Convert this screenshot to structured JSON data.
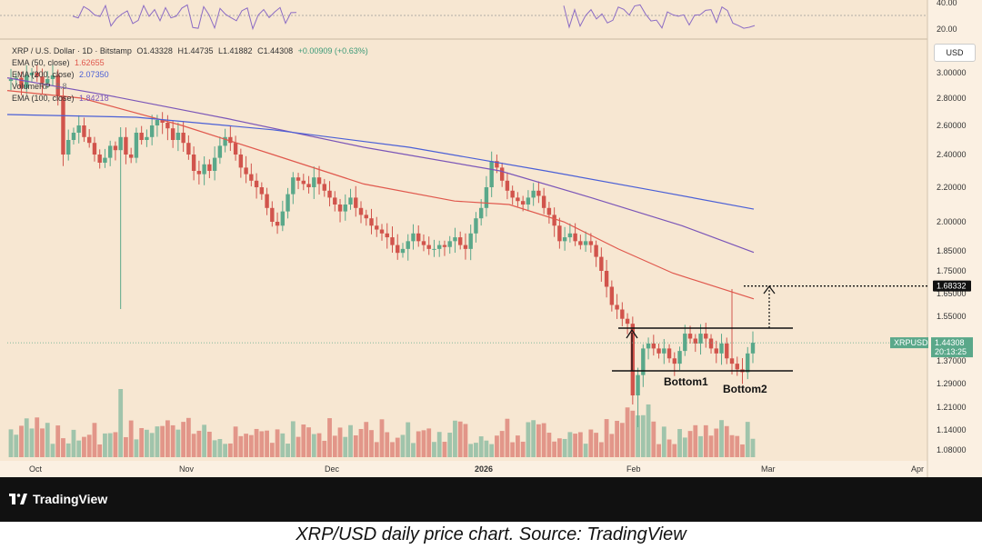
{
  "header": {
    "symbol_line": "XRP / U.S. Dollar · 1D · Bitstamp",
    "ohlc": {
      "o": "O1.43328",
      "h": "H1.44735",
      "l": "L1.41882",
      "c": "C1.44308",
      "chg": "+0.00909 (+0.63%)"
    },
    "indicators": [
      {
        "label": "EMA (50, close)",
        "value": "1.62655",
        "color": "#e0584d"
      },
      {
        "label": "EMA (200, close)",
        "value": "2.07350",
        "color": "#4a5fd6"
      },
      {
        "label": "VolumeRP",
        "value": "2.8",
        "color": "#9a9a9a"
      },
      {
        "label": "EMA (100, close)",
        "value": "1.84218",
        "color": "#7b56b8"
      }
    ]
  },
  "axis": {
    "currency_button": "USD",
    "price_ticks": [
      "3.00000",
      "2.80000",
      "2.60000",
      "2.40000",
      "2.20000",
      "2.00000",
      "1.85000",
      "1.75000",
      "1.65000",
      "1.55000",
      "1.37000",
      "1.29000",
      "1.21000",
      "1.14000",
      "1.08000"
    ],
    "rsi_ticks": [
      "40.00",
      "20.00"
    ],
    "time_labels": [
      "Oct",
      "Nov",
      "Dec",
      "2026",
      "Feb",
      "Mar",
      "Apr"
    ],
    "target_label": "1.68332",
    "current_symbol": "XRPUSD",
    "current_price": "1.44308",
    "countdown": "20:13:25"
  },
  "annotations": {
    "bottom1": "Bottom1",
    "bottom2": "Bottom2"
  },
  "branding": {
    "logo": "TradingView"
  },
  "caption": "XRP/USD daily price chart. Source: TradingView",
  "colors": {
    "bg": "#f7e7d2",
    "up": "#5aa88a",
    "down": "#d1544c",
    "ema50": "#e0584d",
    "ema100": "#7b56b8",
    "ema200": "#4a5fd6"
  },
  "chart_data": {
    "type": "candlestick",
    "title": "XRP / U.S. Dollar · 1D · Bitstamp",
    "x_labels": [
      "Oct",
      "Nov",
      "Dec",
      "2026",
      "Feb",
      "Mar",
      "Apr"
    ],
    "closes": [
      2.95,
      2.96,
      2.88,
      2.98,
      3.0,
      2.97,
      2.92,
      2.95,
      2.98,
      2.82,
      2.4,
      2.5,
      2.55,
      2.6,
      2.52,
      2.48,
      2.4,
      2.35,
      2.38,
      2.46,
      2.43,
      2.52,
      2.4,
      2.38,
      2.55,
      2.5,
      2.52,
      2.6,
      2.64,
      2.62,
      2.58,
      2.5,
      2.55,
      2.48,
      2.4,
      2.3,
      2.28,
      2.34,
      2.3,
      2.38,
      2.46,
      2.52,
      2.48,
      2.4,
      2.32,
      2.28,
      2.24,
      2.2,
      2.16,
      2.08,
      2.0,
      1.98,
      2.06,
      2.16,
      2.26,
      2.24,
      2.22,
      2.2,
      2.26,
      2.22,
      2.18,
      2.14,
      2.1,
      2.06,
      2.1,
      2.14,
      2.08,
      2.04,
      2.02,
      1.98,
      1.96,
      1.94,
      1.92,
      1.88,
      1.84,
      1.86,
      1.9,
      1.94,
      1.9,
      1.88,
      1.86,
      1.86,
      1.88,
      1.87,
      1.9,
      1.92,
      1.88,
      1.86,
      1.94,
      2.02,
      2.08,
      2.2,
      2.36,
      2.32,
      2.24,
      2.18,
      2.14,
      2.12,
      2.1,
      2.14,
      2.18,
      2.15,
      2.08,
      2.04,
      1.98,
      1.9,
      1.92,
      1.94,
      1.9,
      1.88,
      1.9,
      1.88,
      1.82,
      1.75,
      1.68,
      1.6,
      1.58,
      1.54,
      1.52,
      1.25,
      1.32,
      1.42,
      1.44,
      1.42,
      1.4,
      1.42,
      1.38,
      1.36,
      1.41,
      1.48,
      1.46,
      1.44,
      1.48,
      1.46,
      1.42,
      1.4,
      1.44,
      1.38,
      1.36,
      1.34,
      1.33,
      1.4,
      1.44308
    ],
    "markers": {
      "target": 1.68332,
      "resistance": 1.5,
      "support": 1.33
    },
    "ema_final": {
      "ema50": 1.62655,
      "ema100": 1.84218,
      "ema200": 2.0735
    }
  }
}
